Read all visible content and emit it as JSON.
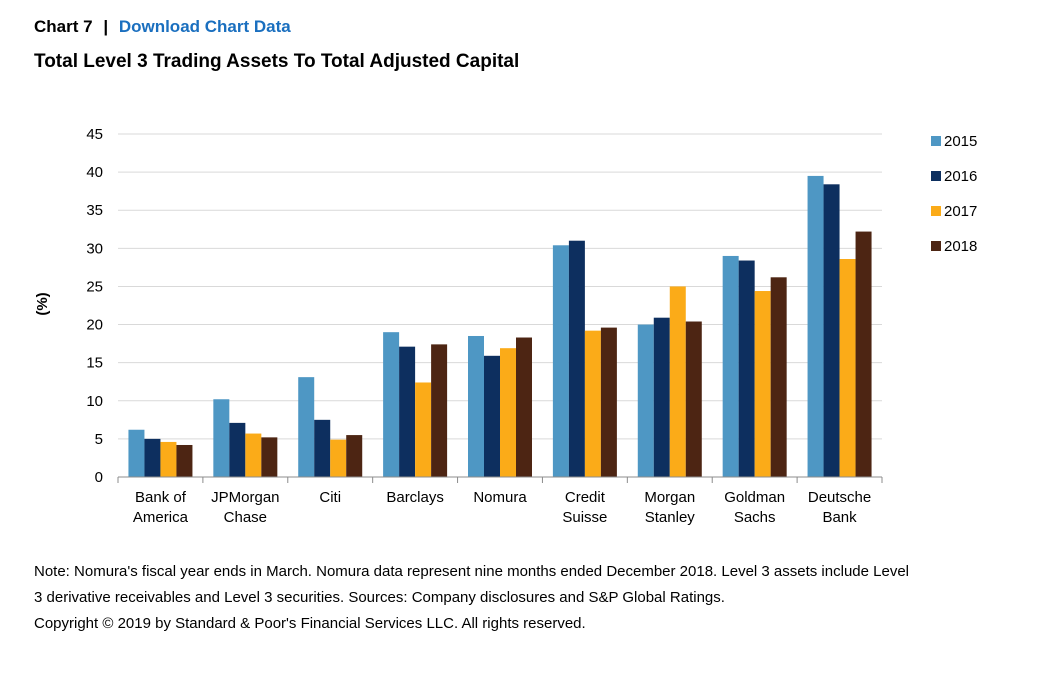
{
  "header": {
    "chart_number": "Chart 7",
    "separator": "|",
    "download_label": "Download Chart Data"
  },
  "chart_data": {
    "type": "bar",
    "title": "Total Level 3 Trading Assets To Total Adjusted Capital",
    "ylabel": "(%)",
    "xlabel": "",
    "ylim": [
      0,
      45
    ],
    "yticks": [
      0,
      5,
      10,
      15,
      20,
      25,
      30,
      35,
      40,
      45
    ],
    "grid": true,
    "legend_position": "right",
    "categories": [
      [
        "Bank of",
        "America"
      ],
      [
        "JPMorgan",
        "Chase"
      ],
      [
        "Citi"
      ],
      [
        "Barclays"
      ],
      [
        "Nomura"
      ],
      [
        "Credit",
        "Suisse"
      ],
      [
        "Morgan",
        "Stanley"
      ],
      [
        "Goldman",
        "Sachs"
      ],
      [
        "Deutsche",
        "Bank"
      ]
    ],
    "series": [
      {
        "name": "2015",
        "color": "#4e97c4",
        "values": [
          6.2,
          10.2,
          13.1,
          19.0,
          18.5,
          30.4,
          20.0,
          29.0,
          39.5
        ]
      },
      {
        "name": "2016",
        "color": "#0d2f5f",
        "values": [
          5.0,
          7.1,
          7.5,
          17.1,
          15.9,
          31.0,
          20.9,
          28.4,
          38.4
        ]
      },
      {
        "name": "2017",
        "color": "#fbab18",
        "values": [
          4.6,
          5.7,
          4.9,
          12.4,
          16.9,
          19.2,
          25.0,
          24.4,
          28.6
        ]
      },
      {
        "name": "2018",
        "color": "#4d2513",
        "values": [
          4.2,
          5.2,
          5.5,
          17.4,
          18.3,
          19.6,
          20.4,
          26.2,
          32.2
        ]
      }
    ]
  },
  "notes": {
    "note_text": "Note: Nomura's fiscal year ends in March. Nomura data represent nine months ended December 2018. Level 3 assets include Level 3 derivative receivables and Level 3 securities. Sources: Company disclosures and S&P Global Ratings.",
    "copyright": "Copyright © 2019 by Standard & Poor's Financial Services LLC. All rights reserved."
  }
}
